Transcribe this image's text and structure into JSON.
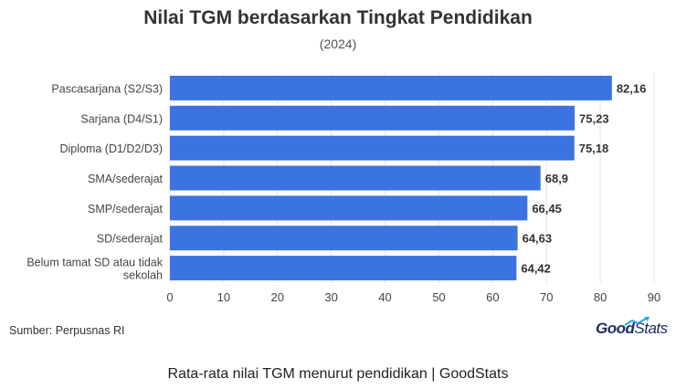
{
  "chart_data": {
    "type": "bar",
    "orientation": "horizontal",
    "title": "Nilai TGM berdasarkan Tingkat Pendidikan",
    "subtitle": "(2024)",
    "categories": [
      "Pascasarjana (S2/S3)",
      "Sarjana  (D4/S1)",
      "Diploma (D1/D2/D3)",
      "SMA/sederajat",
      "SMP/sederajat",
      "SD/sederajat",
      "Belum tamat SD atau tidak sekolah"
    ],
    "values": [
      82.16,
      75.23,
      75.18,
      68.9,
      66.45,
      64.63,
      64.42
    ],
    "value_labels": [
      "82,16",
      "75,23",
      "75,18",
      "68,9",
      "66,45",
      "64,63",
      "64,42"
    ],
    "xlim": [
      0,
      90
    ],
    "xticks": [
      0,
      10,
      20,
      30,
      40,
      50,
      60,
      70,
      80,
      90
    ],
    "grid": true,
    "bar_color": "#3b73e0"
  },
  "source": "Sumber: Perpusnas RI",
  "logo": {
    "text_good": "Good",
    "text_stats": "Stats",
    "color": "#1f2d6b",
    "accent": "#2aa7e0"
  },
  "footer": "Rata-rata nilai TGM menurut pendidikan | GoodStats"
}
